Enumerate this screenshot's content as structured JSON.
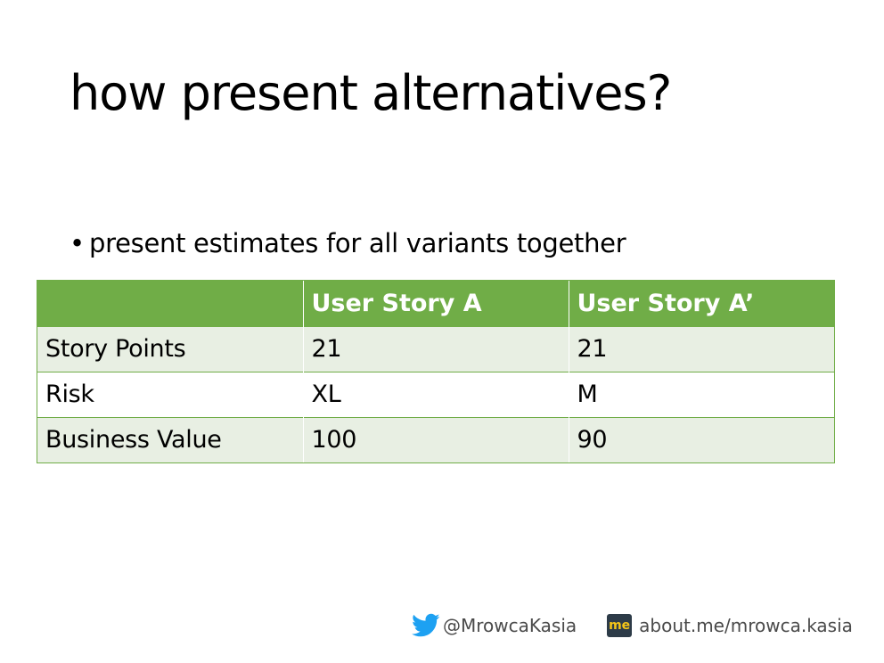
{
  "slide": {
    "title": "how present alternatives?",
    "bullet": "present estimates for all variants together"
  },
  "table": {
    "headers": [
      "",
      "User Story A",
      "User Story A’"
    ],
    "rows": [
      [
        "Story Points",
        "21",
        "21"
      ],
      [
        "Risk",
        "XL",
        "M"
      ],
      [
        "Business Value",
        "100",
        "90"
      ]
    ]
  },
  "footer": {
    "twitter_handle": "@MrowcaKasia",
    "me_badge": "me",
    "website": "about.me/mrowca.kasia"
  },
  "colors": {
    "header_green": "#70ad47",
    "band_green": "#e8efe3",
    "twitter_blue": "#1da1f2"
  },
  "icons": [
    "twitter-bird-icon",
    "about-me-icon"
  ]
}
